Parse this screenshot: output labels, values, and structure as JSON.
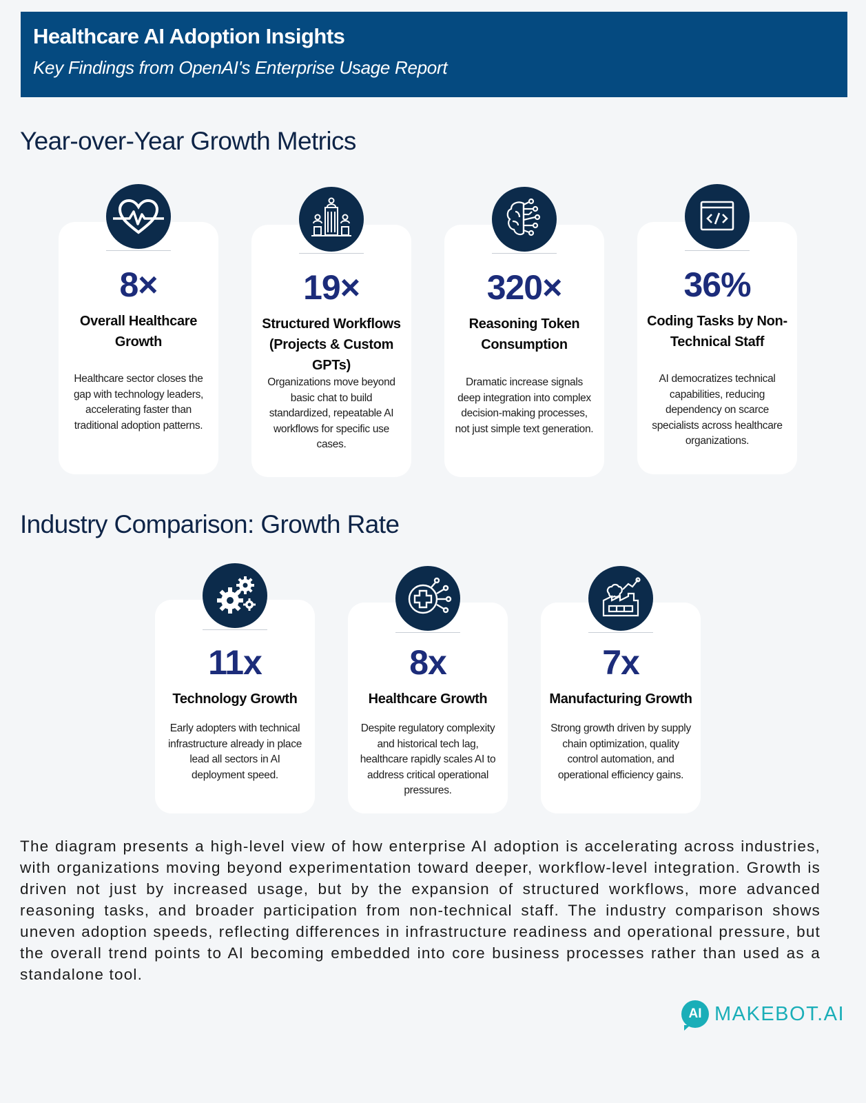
{
  "header": {
    "title": "Healthcare AI Adoption Insights",
    "subtitle": "Key Findings from OpenAI's Enterprise Usage Report"
  },
  "sections": {
    "growth_metrics_title": "Year-over-Year Growth Metrics",
    "industry_title": "Industry Comparison: Growth Rate"
  },
  "growth_cards": [
    {
      "icon": "heart-pulse-icon",
      "metric": "8×",
      "label": "Overall Healthcare Growth",
      "description": "Healthcare sector closes the gap with technology leaders, accelerating faster than traditional adoption patterns."
    },
    {
      "icon": "building-team-icon",
      "metric": "19×",
      "label": "Structured Workflows (Projects & Custom GPTs)",
      "description": "Organizations move beyond basic chat to build standardized, repeatable AI workflows for specific use cases."
    },
    {
      "icon": "brain-circuit-icon",
      "metric": "320×",
      "label": "Reasoning Token Consumption",
      "description": "Dramatic increase signals deep integration into complex decision-making processes, not just simple text generation."
    },
    {
      "icon": "code-window-icon",
      "metric": "36%",
      "label": "Coding Tasks by Non-Technical Staff",
      "description": "AI democratizes technical capabilities, reducing dependency on scarce specialists across healthcare organizations."
    }
  ],
  "industry_cards": [
    {
      "icon": "gears-icon",
      "metric": "11x",
      "label": "Technology Growth",
      "description": "Early adopters with technical infrastructure already in place lead all sectors in AI deployment speed."
    },
    {
      "icon": "medical-cross-circuit-icon",
      "metric": "8x",
      "label": "Healthcare Growth",
      "description": "Despite regulatory complexity and historical tech lag, healthcare rapidly scales AI to address critical operational pressures."
    },
    {
      "icon": "factory-brain-icon",
      "metric": "7x",
      "label": "Manufacturing Growth",
      "description": "Strong growth driven by supply chain optimization, quality control automation, and operational efficiency gains."
    }
  ],
  "paragraph": "The diagram presents a high-level view of how enterprise AI adoption is accelerating across industries, with organizations moving beyond experimentation toward deeper, workflow-level integration. Growth is driven not just by increased usage, but by the expansion of structured workflows, more advanced reasoning tasks, and broader participation from non-technical staff. The industry comparison shows uneven adoption speeds, reflecting differences in infrastructure readiness and operational pressure, but the overall trend points to AI becoming embedded into core business processes rather than used as a standalone tool.",
  "brand": {
    "mark": "AI",
    "name": "MAKEBOT.AI"
  },
  "colors": {
    "header_bg": "#054a80",
    "icon_bg": "#0c2b4b",
    "metric": "#1c2c7a",
    "brand": "#1aaeb8"
  }
}
